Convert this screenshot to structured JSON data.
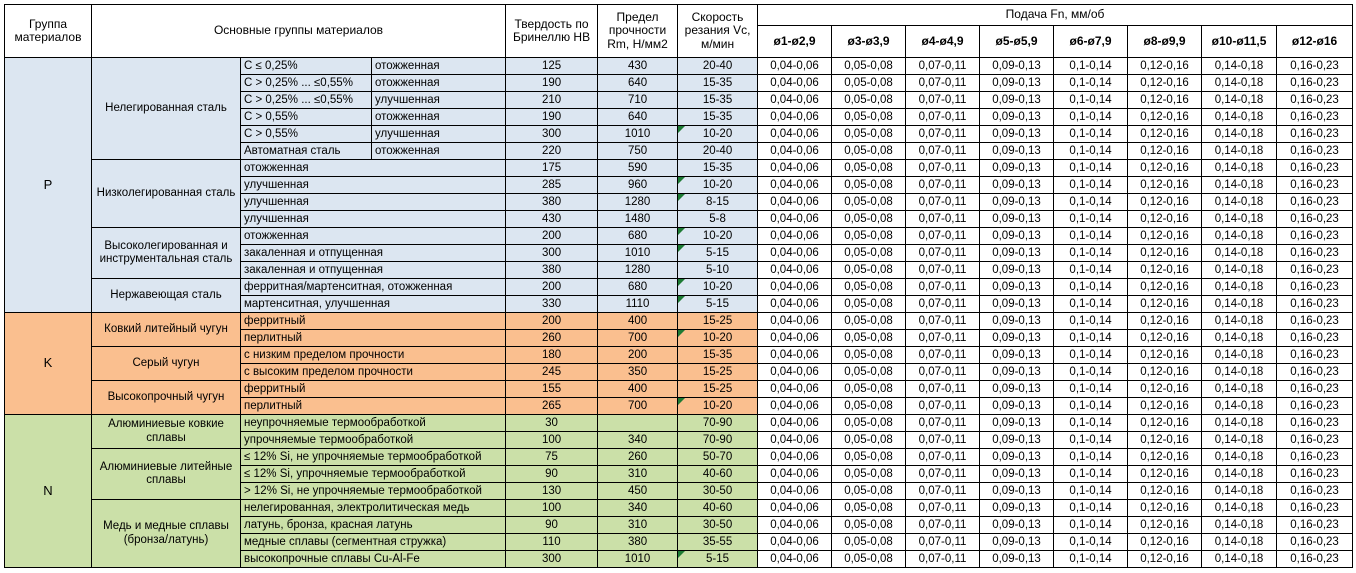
{
  "header": {
    "col_group": "Группа материалов",
    "col_main_groups": "Основные группы материалов",
    "col_hardness": "Твердость по Бринеллю HB",
    "col_strength": "Предел прочности Rm, Н/мм2",
    "col_speed": "Скорость резания Vc, м/мин",
    "feed_title": "Подача Fn, мм/об",
    "feed_columns": [
      "ø1-ø2,9",
      "ø3-ø3,9",
      "ø4-ø4,9",
      "ø5-ø5,9",
      "ø6-ø7,9",
      "ø8-ø9,9",
      "ø10-ø11,5",
      "ø12-ø16"
    ]
  },
  "feed_values": [
    "0,04-0,06",
    "0,05-0,08",
    "0,07-0,11",
    "0,09-0,13",
    "0,1-0,14",
    "0,12-0,16",
    "0,14-0,18",
    "0,16-0,23"
  ],
  "colors": {
    "group_p_fill": "#DCE6F1",
    "group_k_fill": "#FABF8F",
    "group_n_fill": "#CBE0A8",
    "error_flag": "#1E7B34",
    "border": "#000000",
    "header_fill": "#FFFFFF"
  },
  "groups": [
    {
      "code": "P",
      "color": "#DCE6F1",
      "sections": [
        {
          "name": "Нелегированная сталь",
          "rows": [
            {
              "sub": "C ≤ 0,25%",
              "state": "отожженная",
              "hb": "125",
              "rm": "430",
              "vc": "20-40",
              "flag": false
            },
            {
              "sub": "C > 0,25% ... ≤0,55%",
              "state": "отожженная",
              "hb": "190",
              "rm": "640",
              "vc": "15-35",
              "flag": false
            },
            {
              "sub": "C > 0,25% ... ≤0,55%",
              "state": "улучшенная",
              "hb": "210",
              "rm": "710",
              "vc": "15-35",
              "flag": false
            },
            {
              "sub": "C > 0,55%",
              "state": "отожженная",
              "hb": "190",
              "rm": "640",
              "vc": "15-35",
              "flag": false
            },
            {
              "sub": "C > 0,55%",
              "state": "улучшенная",
              "hb": "300",
              "rm": "1010",
              "vc": "10-20",
              "flag": true
            },
            {
              "sub": "Автоматная сталь",
              "state": "отожженная",
              "hb": "220",
              "rm": "750",
              "vc": "20-40",
              "flag": false
            }
          ]
        },
        {
          "name": "Низколегированная сталь",
          "rows": [
            {
              "desc": "отожженная",
              "hb": "175",
              "rm": "590",
              "vc": "15-35",
              "flag": false
            },
            {
              "desc": "улучшенная",
              "hb": "285",
              "rm": "960",
              "vc": "10-20",
              "flag": true
            },
            {
              "desc": "улучшенная",
              "hb": "380",
              "rm": "1280",
              "vc": "8-15",
              "flag": true
            },
            {
              "desc": "улучшенная",
              "hb": "430",
              "rm": "1480",
              "vc": "5-8",
              "flag": false
            }
          ]
        },
        {
          "name": "Высоколегированная и инструментальная сталь",
          "rows": [
            {
              "desc": "отожженная",
              "hb": "200",
              "rm": "680",
              "vc": "10-20",
              "flag": true
            },
            {
              "desc": "закаленная и отпущенная",
              "hb": "300",
              "rm": "1010",
              "vc": "5-15",
              "flag": true
            },
            {
              "desc": "закаленная и отпущенная",
              "hb": "380",
              "rm": "1280",
              "vc": "5-10",
              "flag": false
            }
          ]
        },
        {
          "name": "Нержавеющая сталь",
          "rows": [
            {
              "desc": "ферритная/мартенситная, отожженная",
              "hb": "200",
              "rm": "680",
              "vc": "10-20",
              "flag": true
            },
            {
              "desc": "мартенситная, улучшенная",
              "hb": "330",
              "rm": "1110",
              "vc": "5-15",
              "flag": true
            }
          ]
        }
      ]
    },
    {
      "code": "K",
      "color": "#FABF8F",
      "sections": [
        {
          "name": "Ковкий литейный чугун",
          "rows": [
            {
              "desc": "ферритный",
              "hb": "200",
              "rm": "400",
              "vc": "15-25",
              "flag": false
            },
            {
              "desc": "перлитный",
              "hb": "260",
              "rm": "700",
              "vc": "10-20",
              "flag": true
            }
          ]
        },
        {
          "name": "Серый чугун",
          "rows": [
            {
              "desc": "с низким пределом прочности",
              "hb": "180",
              "rm": "200",
              "vc": "15-35",
              "flag": false
            },
            {
              "desc": "с высоким пределом прочности",
              "hb": "245",
              "rm": "350",
              "vc": "15-25",
              "flag": false
            }
          ]
        },
        {
          "name": "Высокопрочный чугун",
          "rows": [
            {
              "desc": "ферритный",
              "hb": "155",
              "rm": "400",
              "vc": "15-25",
              "flag": false
            },
            {
              "desc": "перлитный",
              "hb": "265",
              "rm": "700",
              "vc": "10-20",
              "flag": true
            }
          ]
        }
      ]
    },
    {
      "code": "N",
      "color": "#CBE0A8",
      "sections": [
        {
          "name": "Алюминиевые ковкие сплавы",
          "rows": [
            {
              "desc": "неупрочняемые термообработкой",
              "hb": "30",
              "rm": "",
              "vc": "70-90",
              "flag": false
            },
            {
              "desc": "упрочняемые термообработкой",
              "hb": "100",
              "rm": "340",
              "vc": "70-90",
              "flag": false
            }
          ]
        },
        {
          "name": "Алюминиевые литейные сплавы",
          "rows": [
            {
              "desc": "≤ 12% Si, не упрочняемые термообработкой",
              "hb": "75",
              "rm": "260",
              "vc": "50-70",
              "flag": false
            },
            {
              "desc": "≤ 12% Si, упрочняемые термообработкой",
              "hb": "90",
              "rm": "310",
              "vc": "40-60",
              "flag": false
            },
            {
              "desc": "> 12% Si, не упрочняемые термообработкой",
              "hb": "130",
              "rm": "450",
              "vc": "30-50",
              "flag": false
            }
          ]
        },
        {
          "name": "Медь и медные сплавы (бронза/латунь)",
          "rows": [
            {
              "desc": "нелегированная, электролитическая медь",
              "hb": "100",
              "rm": "340",
              "vc": "40-60",
              "flag": false
            },
            {
              "desc": "латунь, бронза, красная латунь",
              "hb": "90",
              "rm": "310",
              "vc": "30-50",
              "flag": false
            },
            {
              "desc": "медные сплавы (сегментная стружка)",
              "hb": "110",
              "rm": "380",
              "vc": "35-55",
              "flag": false
            },
            {
              "desc": "высокопрочные сплавы Cu-Al-Fe",
              "hb": "300",
              "rm": "1010",
              "vc": "5-15",
              "flag": true
            }
          ]
        }
      ]
    }
  ]
}
